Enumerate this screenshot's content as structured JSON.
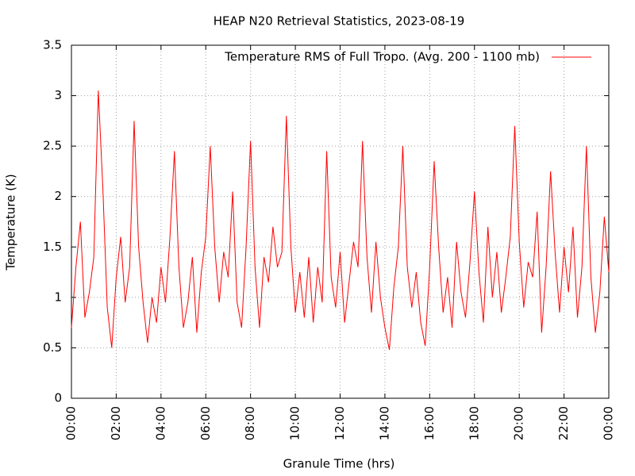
{
  "chart_data": {
    "type": "line",
    "title": "HEAP N20 Retrieval Statistics, 2023-08-19",
    "x_label": "Granule Time (hrs)",
    "y_label": "Temperature (K)",
    "x": [
      0,
      0.2,
      0.4,
      0.6,
      0.8,
      1,
      1.2,
      1.4,
      1.6,
      1.8,
      2,
      2.2,
      2.4,
      2.6,
      2.8,
      3,
      3.2,
      3.4,
      3.6,
      3.8,
      4,
      4.2,
      4.4,
      4.6,
      4.8,
      5,
      5.2,
      5.4,
      5.6,
      5.8,
      6,
      6.2,
      6.4,
      6.6,
      6.8,
      7,
      7.2,
      7.4,
      7.6,
      7.8,
      8,
      8.2,
      8.4,
      8.6,
      8.8,
      9,
      9.2,
      9.4,
      9.6,
      9.8,
      10,
      10.2,
      10.4,
      10.6,
      10.8,
      11,
      11.2,
      11.4,
      11.6,
      11.8,
      12,
      12.2,
      12.4,
      12.6,
      12.8,
      13,
      13.2,
      13.4,
      13.6,
      13.8,
      14,
      14.2,
      14.4,
      14.6,
      14.8,
      15,
      15.2,
      15.4,
      15.6,
      15.8,
      16,
      16.2,
      16.4,
      16.6,
      16.8,
      17,
      17.2,
      17.4,
      17.6,
      17.8,
      18,
      18.2,
      18.4,
      18.6,
      18.8,
      19,
      19.2,
      19.4,
      19.6,
      19.8,
      20,
      20.2,
      20.4,
      20.6,
      20.8,
      21,
      21.2,
      21.4,
      21.6,
      21.8,
      22,
      22.2,
      22.4,
      22.6,
      22.8,
      23,
      23.2,
      23.4,
      23.6,
      23.8,
      24
    ],
    "series": [
      {
        "name": "Temperature RMS of Full Tropo. (Avg. 200 - 1100 mb)",
        "color": "#ff0000",
        "values": [
          0.7,
          1.3,
          1.75,
          0.8,
          1.05,
          1.4,
          3.05,
          2.1,
          0.9,
          0.5,
          1.2,
          1.6,
          0.95,
          1.3,
          2.75,
          1.5,
          0.95,
          0.55,
          1.0,
          0.75,
          1.3,
          0.95,
          1.6,
          2.45,
          1.3,
          0.7,
          0.95,
          1.4,
          0.65,
          1.25,
          1.6,
          2.5,
          1.5,
          0.95,
          1.45,
          1.2,
          2.05,
          0.95,
          0.7,
          1.5,
          2.55,
          1.3,
          0.7,
          1.4,
          1.15,
          1.7,
          1.3,
          1.45,
          2.8,
          1.5,
          0.85,
          1.25,
          0.8,
          1.4,
          0.75,
          1.3,
          0.95,
          2.45,
          1.2,
          0.9,
          1.45,
          0.75,
          1.15,
          1.55,
          1.3,
          2.55,
          1.4,
          0.85,
          1.55,
          1.0,
          0.7,
          0.48,
          1.1,
          1.5,
          2.5,
          1.3,
          0.9,
          1.25,
          0.75,
          0.52,
          1.3,
          2.35,
          1.5,
          0.85,
          1.2,
          0.7,
          1.55,
          1.05,
          0.8,
          1.35,
          2.05,
          1.25,
          0.75,
          1.7,
          1.0,
          1.45,
          0.85,
          1.2,
          1.6,
          2.7,
          1.55,
          0.9,
          1.35,
          1.2,
          1.85,
          0.65,
          1.3,
          2.25,
          1.45,
          0.85,
          1.5,
          1.05,
          1.7,
          0.8,
          1.3,
          2.5,
          1.2,
          0.65,
          1.05,
          1.8,
          1.25
        ]
      }
    ],
    "xlim": [
      0,
      24
    ],
    "xticks": [
      {
        "value": 0,
        "label": "00:00"
      },
      {
        "value": 2,
        "label": "02:00"
      },
      {
        "value": 4,
        "label": "04:00"
      },
      {
        "value": 6,
        "label": "06:00"
      },
      {
        "value": 8,
        "label": "08:00"
      },
      {
        "value": 10,
        "label": "10:00"
      },
      {
        "value": 12,
        "label": "12:00"
      },
      {
        "value": 14,
        "label": "14:00"
      },
      {
        "value": 16,
        "label": "16:00"
      },
      {
        "value": 18,
        "label": "18:00"
      },
      {
        "value": 20,
        "label": "20:00"
      },
      {
        "value": 22,
        "label": "22:00"
      },
      {
        "value": 24,
        "label": "00:00"
      }
    ],
    "ylim": [
      0,
      3.5
    ],
    "yticks": [
      0,
      0.5,
      1,
      1.5,
      2,
      2.5,
      3,
      3.5
    ],
    "grid": true,
    "legend": "top-right"
  }
}
